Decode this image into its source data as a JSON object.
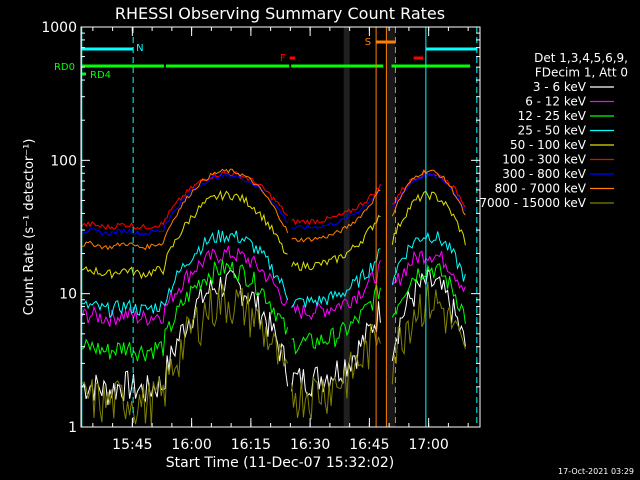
{
  "chart_data": {
    "type": "line",
    "title": "RHESSI Observing Summary Count Rates",
    "xlabel": "Start Time (11-Dec-07 15:32:02)",
    "ylabel": "Count Rate (s⁻¹ detector⁻¹)",
    "yscale": "log",
    "ylim": [
      1,
      1000
    ],
    "xlim_min": [
      0,
      101
    ],
    "x_ticks": [
      {
        "min": 13,
        "label": "15:45"
      },
      {
        "min": 28,
        "label": "16:00"
      },
      {
        "min": 43,
        "label": "16:15"
      },
      {
        "min": 58,
        "label": "16:30"
      },
      {
        "min": 73,
        "label": "16:45"
      },
      {
        "min": 88,
        "label": "17:00"
      }
    ],
    "x_minor_step": 5,
    "y_ticks": [
      {
        "v": 1,
        "label": "1"
      },
      {
        "v": 10,
        "label": "10"
      },
      {
        "v": 100,
        "label": "100"
      },
      {
        "v": 1000,
        "label": "1000"
      }
    ],
    "legend_header": [
      "Det 1,3,4,5,6,9,",
      "FDecim 1, Att 0"
    ],
    "legend_position": "right",
    "series": [
      {
        "name": "3 - 6 keV",
        "color": "#ffffff"
      },
      {
        "name": "6 - 12 keV",
        "color": "#ff00ff"
      },
      {
        "name": "12 - 25 keV",
        "color": "#00ff00"
      },
      {
        "name": "25 - 50 keV",
        "color": "#00ffff"
      },
      {
        "name": "50 - 100 keV",
        "color": "#e0e000"
      },
      {
        "name": "100 - 300 keV",
        "color": "#ff0000"
      },
      {
        "name": "300 - 800 keV",
        "color": "#0000ff"
      },
      {
        "name": "800 - 7000 keV",
        "color": "#ff8000"
      },
      {
        "name": "7000 - 15000 keV",
        "color": "#808000"
      }
    ],
    "annotations": [
      {
        "label": "N",
        "color": "#00ffff"
      },
      {
        "label": "F",
        "color": "#ff0000"
      },
      {
        "label": "S",
        "color": "#ff8000"
      },
      {
        "label": "RD0",
        "color": "#00ff00"
      },
      {
        "label": "RD4",
        "color": "#00ff00"
      }
    ],
    "footer": "17-Oct-2021 03:29"
  }
}
